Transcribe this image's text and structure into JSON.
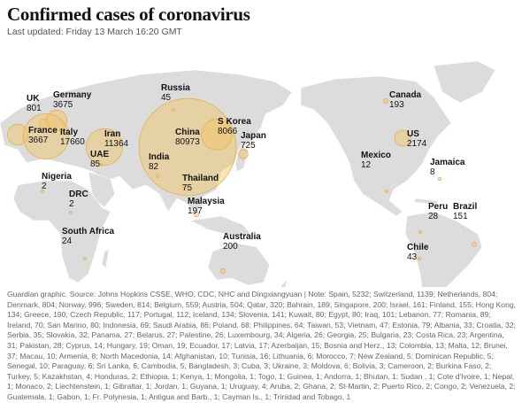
{
  "title": "Confirmed cases of coronavirus",
  "subtitle": "Last updated: Friday 13 March 16:20 GMT",
  "places": [
    {
      "name": "UK",
      "value": 801
    },
    {
      "name": "Germany",
      "value": 3675
    },
    {
      "name": "France",
      "value": 3667
    },
    {
      "name": "Italy",
      "value": 17660
    },
    {
      "name": "Iran",
      "value": 11364
    },
    {
      "name": "UAE",
      "value": 85
    },
    {
      "name": "Nigeria",
      "value": 2
    },
    {
      "name": "DRC",
      "value": 2
    },
    {
      "name": "South Africa",
      "value": 24
    },
    {
      "name": "Russia",
      "value": 45
    },
    {
      "name": "China",
      "value": 80973
    },
    {
      "name": "S Korea",
      "value": 8066
    },
    {
      "name": "Japan",
      "value": 725
    },
    {
      "name": "India",
      "value": 82
    },
    {
      "name": "Thailand",
      "value": 75
    },
    {
      "name": "Malaysia",
      "value": 197
    },
    {
      "name": "Australia",
      "value": 200
    },
    {
      "name": "Canada",
      "value": 193
    },
    {
      "name": "US",
      "value": 2174
    },
    {
      "name": "Mexico",
      "value": 12
    },
    {
      "name": "Jamaica",
      "value": 8
    },
    {
      "name": "Peru",
      "value": 28
    },
    {
      "name": "Brazil",
      "value": 151
    },
    {
      "name": "Chile",
      "value": 43
    }
  ],
  "note": "Guardian graphic. Source: Johns Hopkins CSSE, WHO, CDC, NHC and Dingxiangyuan | Note: Spain, 5232; Switzerland, 1139; Netherlands, 804; Denmark, 804; Norway, 996; Sweden, 814; Belgium, 559; Austria, 504; Qatar, 320; Bahrain, 189; Singapore, 200; Israel, 161; Finland, 155; Hong Kong, 134; Greece, 190; Czech Republic, 117; Portugal, 112; Iceland, 134; Slovenia, 141; Kuwait, 80; Egypt, 80; Iraq, 101; Lebanon, 77; Romania, 89; Ireland, 70; San Marino, 80; Indonesia, 69; Saudi Arabia, 86; Poland, 68; Philippines, 64; Taiwan, 53; Vietnam, 47; Estonia, 79; Albania, 33; Croatia, 32; Serbia, 35; Slovakia, 32; Panama, 27; Belarus, 27; Palestine, 26; Luxembourg, 34; Algeria, 26; Georgia, 25; Bulgaria, 23; Costa Rica, 23; Argentina, 31; Pakistan, 28; Cyprus, 14; Hungary, 19; Oman, 19; Ecuador, 17; Latvia, 17; Azerbaijan, 15; Bosnia and Herz., 13; Colombia, 13; Malta, 12; Brunei, 37; Macau, 10; Armenia, 8; North Macedonia, 14; Afghanistan, 10; Tunisia, 16; Lithuania, 6; Morocco, 7; New Zealand, 5; Dominican Republic, 5; Senegal, 10; Paraguay, 6; Sri Lanka, 6; Cambodia, 5; Bangladesh, 3; Cuba, 3; Ukraine, 3; Moldova, 6; Bolivia, 3; Cameroon, 2; Burkina Faso, 2; Turkey, 5; Kazakhstan, 4; Honduras, 2; Ethiopia, 1; Kenya, 1; Mongolia, 1; Togo, 1; Guinea, 1; Andorra, 1; Bhutan, 1; Sudan , 1; Cote d'Ivoire, 1; Nepal, 1; Monaco, 2; Liechtenstein, 1; Gibraltar, 1; Jordan, 1; Guyana, 1; Uruguay, 4; Aruba, 2; Ghana, 2; St-Martin, 2; Puerto Rico, 2; Congo, 2; Venezuela, 2; Guatemala, 1; Gabon, 1; Fr. Polynesia, 1; Antigua and Barb., 1; Cayman Is., 1; Trinidad and Tobago, 1"
}
